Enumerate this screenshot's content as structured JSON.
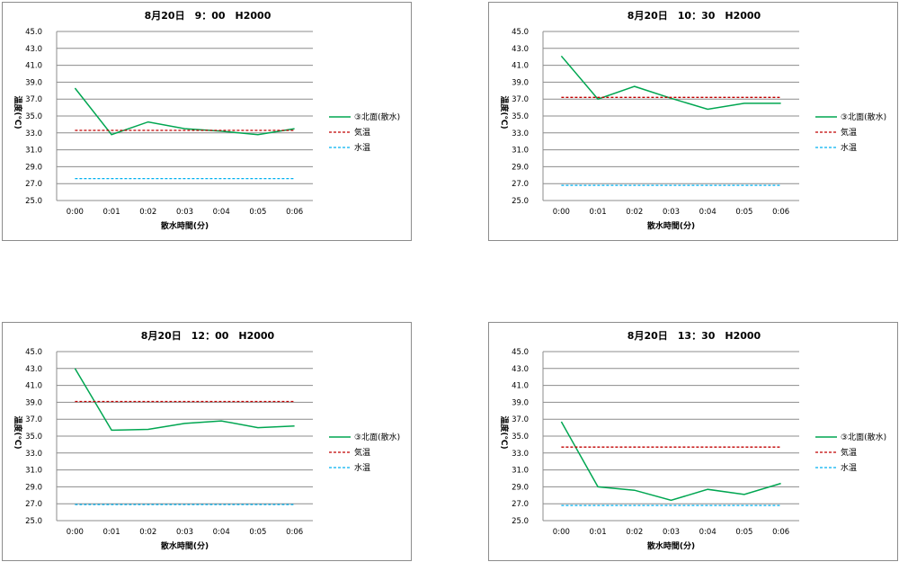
{
  "chart_data": [
    {
      "type": "line",
      "title": "8月20日　9：00　H2000",
      "xlabel": "散水時間(分)",
      "ylabel": "温度(℃)",
      "ylim": [
        25.0,
        45.0
      ],
      "yticks": [
        "45.0",
        "43.0",
        "41.0",
        "39.0",
        "37.0",
        "35.0",
        "33.0",
        "31.0",
        "29.0",
        "27.0",
        "25.0"
      ],
      "categories": [
        "0:00",
        "0:01",
        "0:02",
        "0:03",
        "0:04",
        "0:05",
        "0:06"
      ],
      "grid": true,
      "legend_position": "right",
      "series": [
        {
          "name": "③北面(散水)",
          "values": [
            38.3,
            32.8,
            34.3,
            33.5,
            33.2,
            32.8,
            33.5
          ],
          "color": "#00a651",
          "dash": "solid"
        },
        {
          "name": "気温",
          "values": [
            33.3,
            33.3,
            33.3,
            33.3,
            33.3,
            33.3,
            33.3
          ],
          "color": "#c00000",
          "dash": "dashed"
        },
        {
          "name": "水温",
          "values": [
            27.6,
            27.6,
            27.6,
            27.6,
            27.6,
            27.6,
            27.6
          ],
          "color": "#00b0f0",
          "dash": "dashed"
        }
      ]
    },
    {
      "type": "line",
      "title": "8月20日　10：30　H2000",
      "xlabel": "散水時間(分)",
      "ylabel": "温度(℃)",
      "ylim": [
        25.0,
        45.0
      ],
      "yticks": [
        "45.0",
        "43.0",
        "41.0",
        "39.0",
        "37.0",
        "35.0",
        "33.0",
        "31.0",
        "29.0",
        "27.0",
        "25.0"
      ],
      "categories": [
        "0:00",
        "0:01",
        "0:02",
        "0:03",
        "0:04",
        "0:05",
        "0:06"
      ],
      "grid": true,
      "legend_position": "right",
      "series": [
        {
          "name": "③北面(散水)",
          "values": [
            42.1,
            37.0,
            38.5,
            37.1,
            35.8,
            36.5,
            36.5
          ],
          "color": "#00a651",
          "dash": "solid"
        },
        {
          "name": "気温",
          "values": [
            37.2,
            37.2,
            37.2,
            37.2,
            37.2,
            37.2,
            37.2
          ],
          "color": "#c00000",
          "dash": "dashed"
        },
        {
          "name": "水温",
          "values": [
            26.8,
            26.8,
            26.8,
            26.8,
            26.8,
            26.8,
            26.8
          ],
          "color": "#00b0f0",
          "dash": "dashed"
        }
      ]
    },
    {
      "type": "line",
      "title": "8月20日　12：00　H2000",
      "xlabel": "散水時間(分)",
      "ylabel": "温度(℃)",
      "ylim": [
        25.0,
        45.0
      ],
      "yticks": [
        "45.0",
        "43.0",
        "41.0",
        "39.0",
        "37.0",
        "35.0",
        "33.0",
        "31.0",
        "29.0",
        "27.0",
        "25.0"
      ],
      "categories": [
        "0:00",
        "0:01",
        "0:02",
        "0:03",
        "0:04",
        "0:05",
        "0:06"
      ],
      "grid": true,
      "legend_position": "right",
      "series": [
        {
          "name": "③北面(散水)",
          "values": [
            43.0,
            35.7,
            35.8,
            36.5,
            36.8,
            36.0,
            36.2
          ],
          "color": "#00a651",
          "dash": "solid"
        },
        {
          "name": "気温",
          "values": [
            39.1,
            39.1,
            39.1,
            39.1,
            39.1,
            39.1,
            39.1
          ],
          "color": "#c00000",
          "dash": "dashed"
        },
        {
          "name": "水温",
          "values": [
            26.9,
            26.9,
            26.9,
            26.9,
            26.9,
            26.9,
            26.9
          ],
          "color": "#00b0f0",
          "dash": "dashed"
        }
      ]
    },
    {
      "type": "line",
      "title": "8月20日　13：30　H2000",
      "xlabel": "散水時間(分)",
      "ylabel": "温度(℃)",
      "ylim": [
        25.0,
        45.0
      ],
      "yticks": [
        "45.0",
        "43.0",
        "41.0",
        "39.0",
        "37.0",
        "35.0",
        "33.0",
        "31.0",
        "29.0",
        "27.0",
        "25.0"
      ],
      "categories": [
        "0:00",
        "0:01",
        "0:02",
        "0:03",
        "0:04",
        "0:05",
        "0:06"
      ],
      "grid": true,
      "legend_position": "right",
      "series": [
        {
          "name": "③北面(散水)",
          "values": [
            36.7,
            29.0,
            28.6,
            27.4,
            28.7,
            28.1,
            29.4
          ],
          "color": "#00a651",
          "dash": "solid"
        },
        {
          "name": "気温",
          "values": [
            33.7,
            33.7,
            33.7,
            33.7,
            33.7,
            33.7,
            33.7
          ],
          "color": "#c00000",
          "dash": "dashed"
        },
        {
          "name": "水温",
          "values": [
            26.8,
            26.8,
            26.8,
            26.8,
            26.8,
            26.8,
            26.8
          ],
          "color": "#00b0f0",
          "dash": "dashed"
        }
      ]
    }
  ]
}
